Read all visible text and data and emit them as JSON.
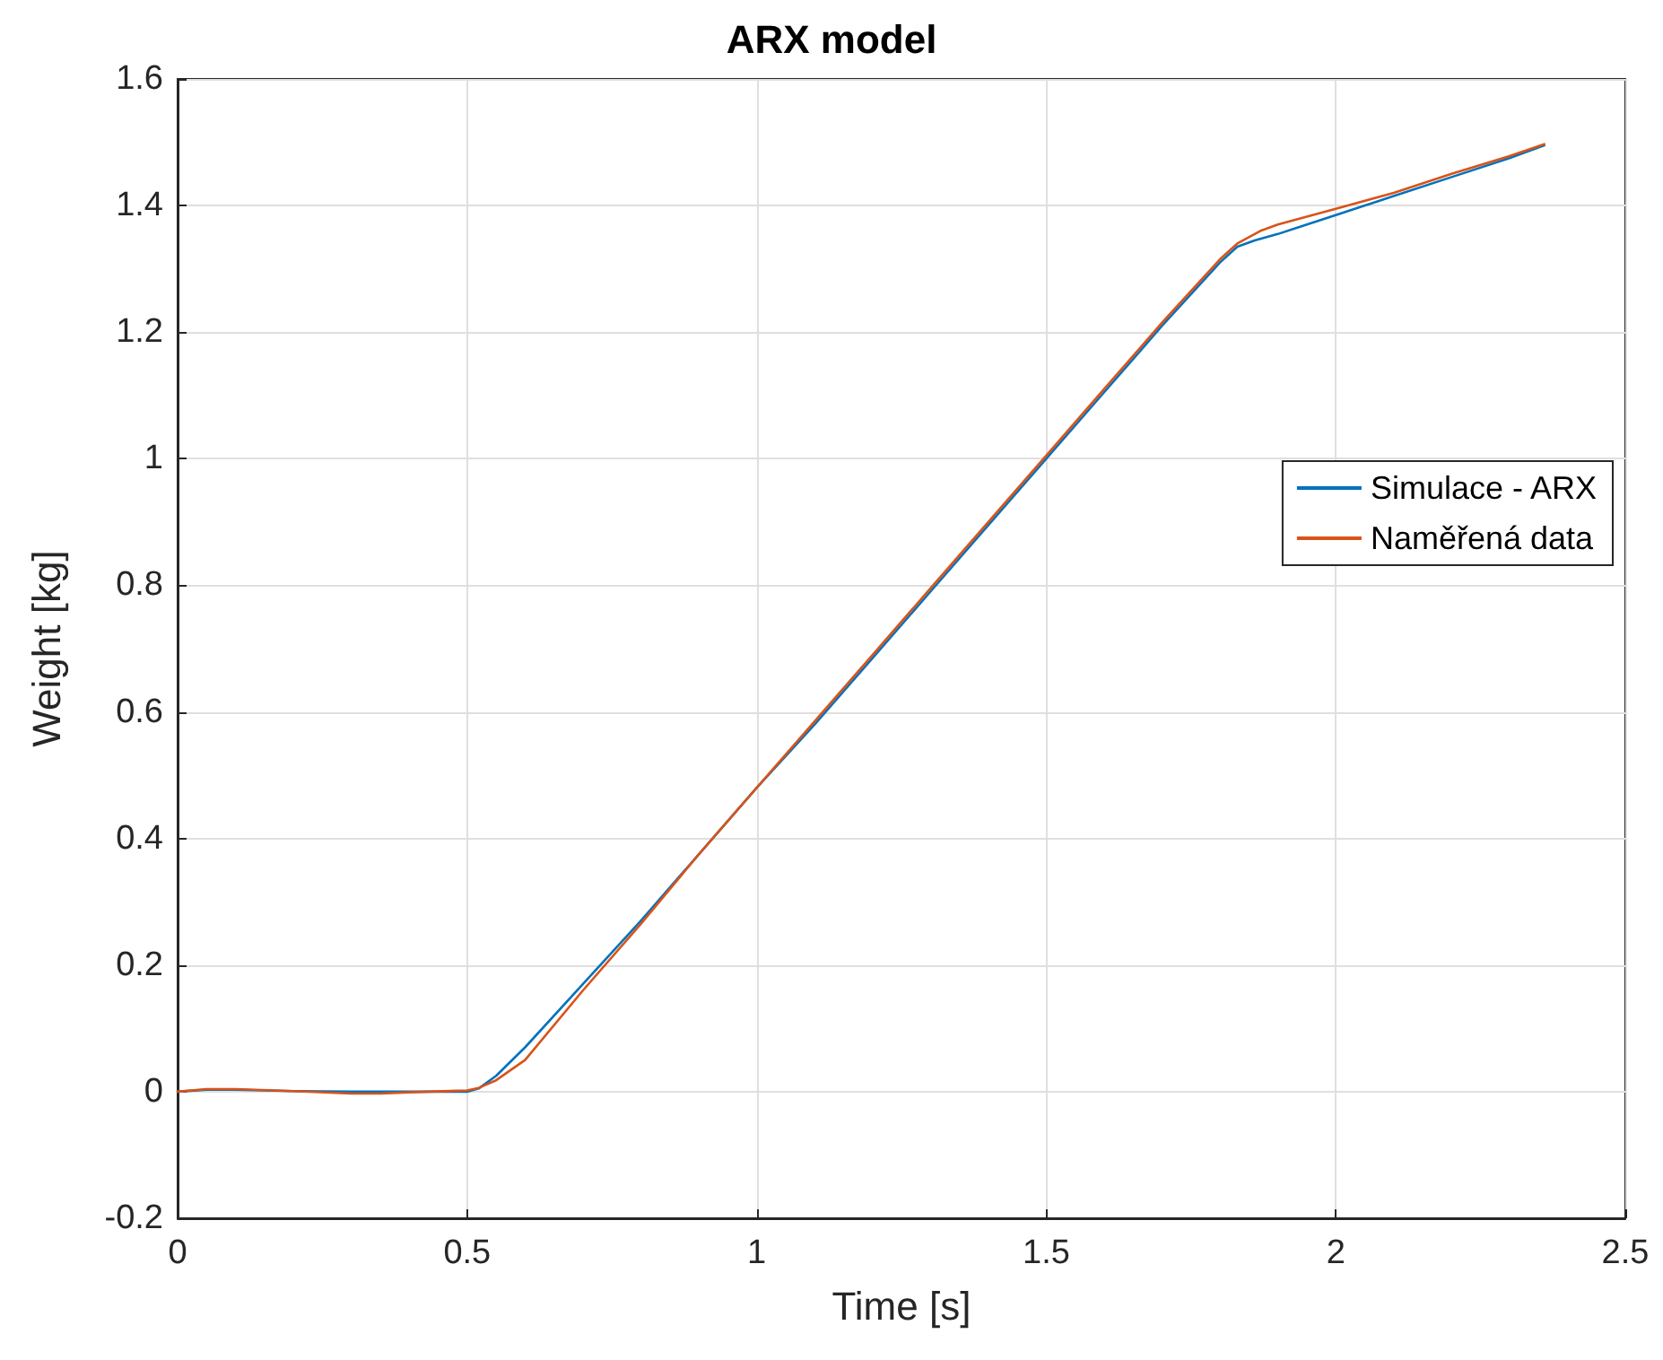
{
  "chart_data": {
    "type": "line",
    "title": "ARX model",
    "xlabel": "Time [s]",
    "ylabel": "Weight [kg]",
    "xlim": [
      0,
      2.5
    ],
    "xticks": [
      0,
      0.5,
      1,
      1.5,
      2,
      2.5
    ],
    "ylim": [
      -0.2,
      1.6
    ],
    "yticks": [
      -0.2,
      0,
      0.2,
      0.4,
      0.6,
      0.8,
      1,
      1.2,
      1.4,
      1.6
    ],
    "grid": true,
    "legend": "right",
    "marker": "none",
    "line_style": "solid",
    "series": [
      {
        "name": "Simulace - ARX",
        "color": "#0072bd",
        "x": [
          0,
          0.05,
          0.1,
          0.2,
          0.3,
          0.4,
          0.5,
          0.52,
          0.55,
          0.6,
          0.7,
          0.8,
          0.9,
          1,
          1.1,
          1.2,
          1.3,
          1.4,
          1.5,
          1.6,
          1.7,
          1.8,
          1.83,
          1.86,
          1.9,
          2,
          2.1,
          2.2,
          2.3,
          2.36
        ],
        "values": [
          0,
          0.003,
          0.003,
          0.001,
          0,
          0,
          0,
          0.005,
          0.025,
          0.07,
          0.17,
          0.27,
          0.375,
          0.48,
          0.58,
          0.685,
          0.79,
          0.895,
          1,
          1.105,
          1.21,
          1.31,
          1.335,
          1.345,
          1.355,
          1.385,
          1.415,
          1.445,
          1.475,
          1.495
        ]
      },
      {
        "name": "Naměřená data",
        "color": "#d95319",
        "x": [
          0,
          0.05,
          0.1,
          0.2,
          0.3,
          0.35,
          0.4,
          0.5,
          0.52,
          0.55,
          0.6,
          0.7,
          0.8,
          0.9,
          1,
          1.1,
          1.2,
          1.3,
          1.4,
          1.5,
          1.6,
          1.7,
          1.8,
          1.83,
          1.87,
          1.9,
          2,
          2.1,
          2.2,
          2.3,
          2.36
        ],
        "values": [
          0,
          0.004,
          0.004,
          0.001,
          -0.003,
          -0.003,
          -0.001,
          0.002,
          0.006,
          0.018,
          0.05,
          0.16,
          0.265,
          0.375,
          0.48,
          0.585,
          0.69,
          0.795,
          0.9,
          1.005,
          1.11,
          1.215,
          1.315,
          1.34,
          1.36,
          1.37,
          1.395,
          1.42,
          1.45,
          1.478,
          1.497
        ]
      }
    ]
  }
}
